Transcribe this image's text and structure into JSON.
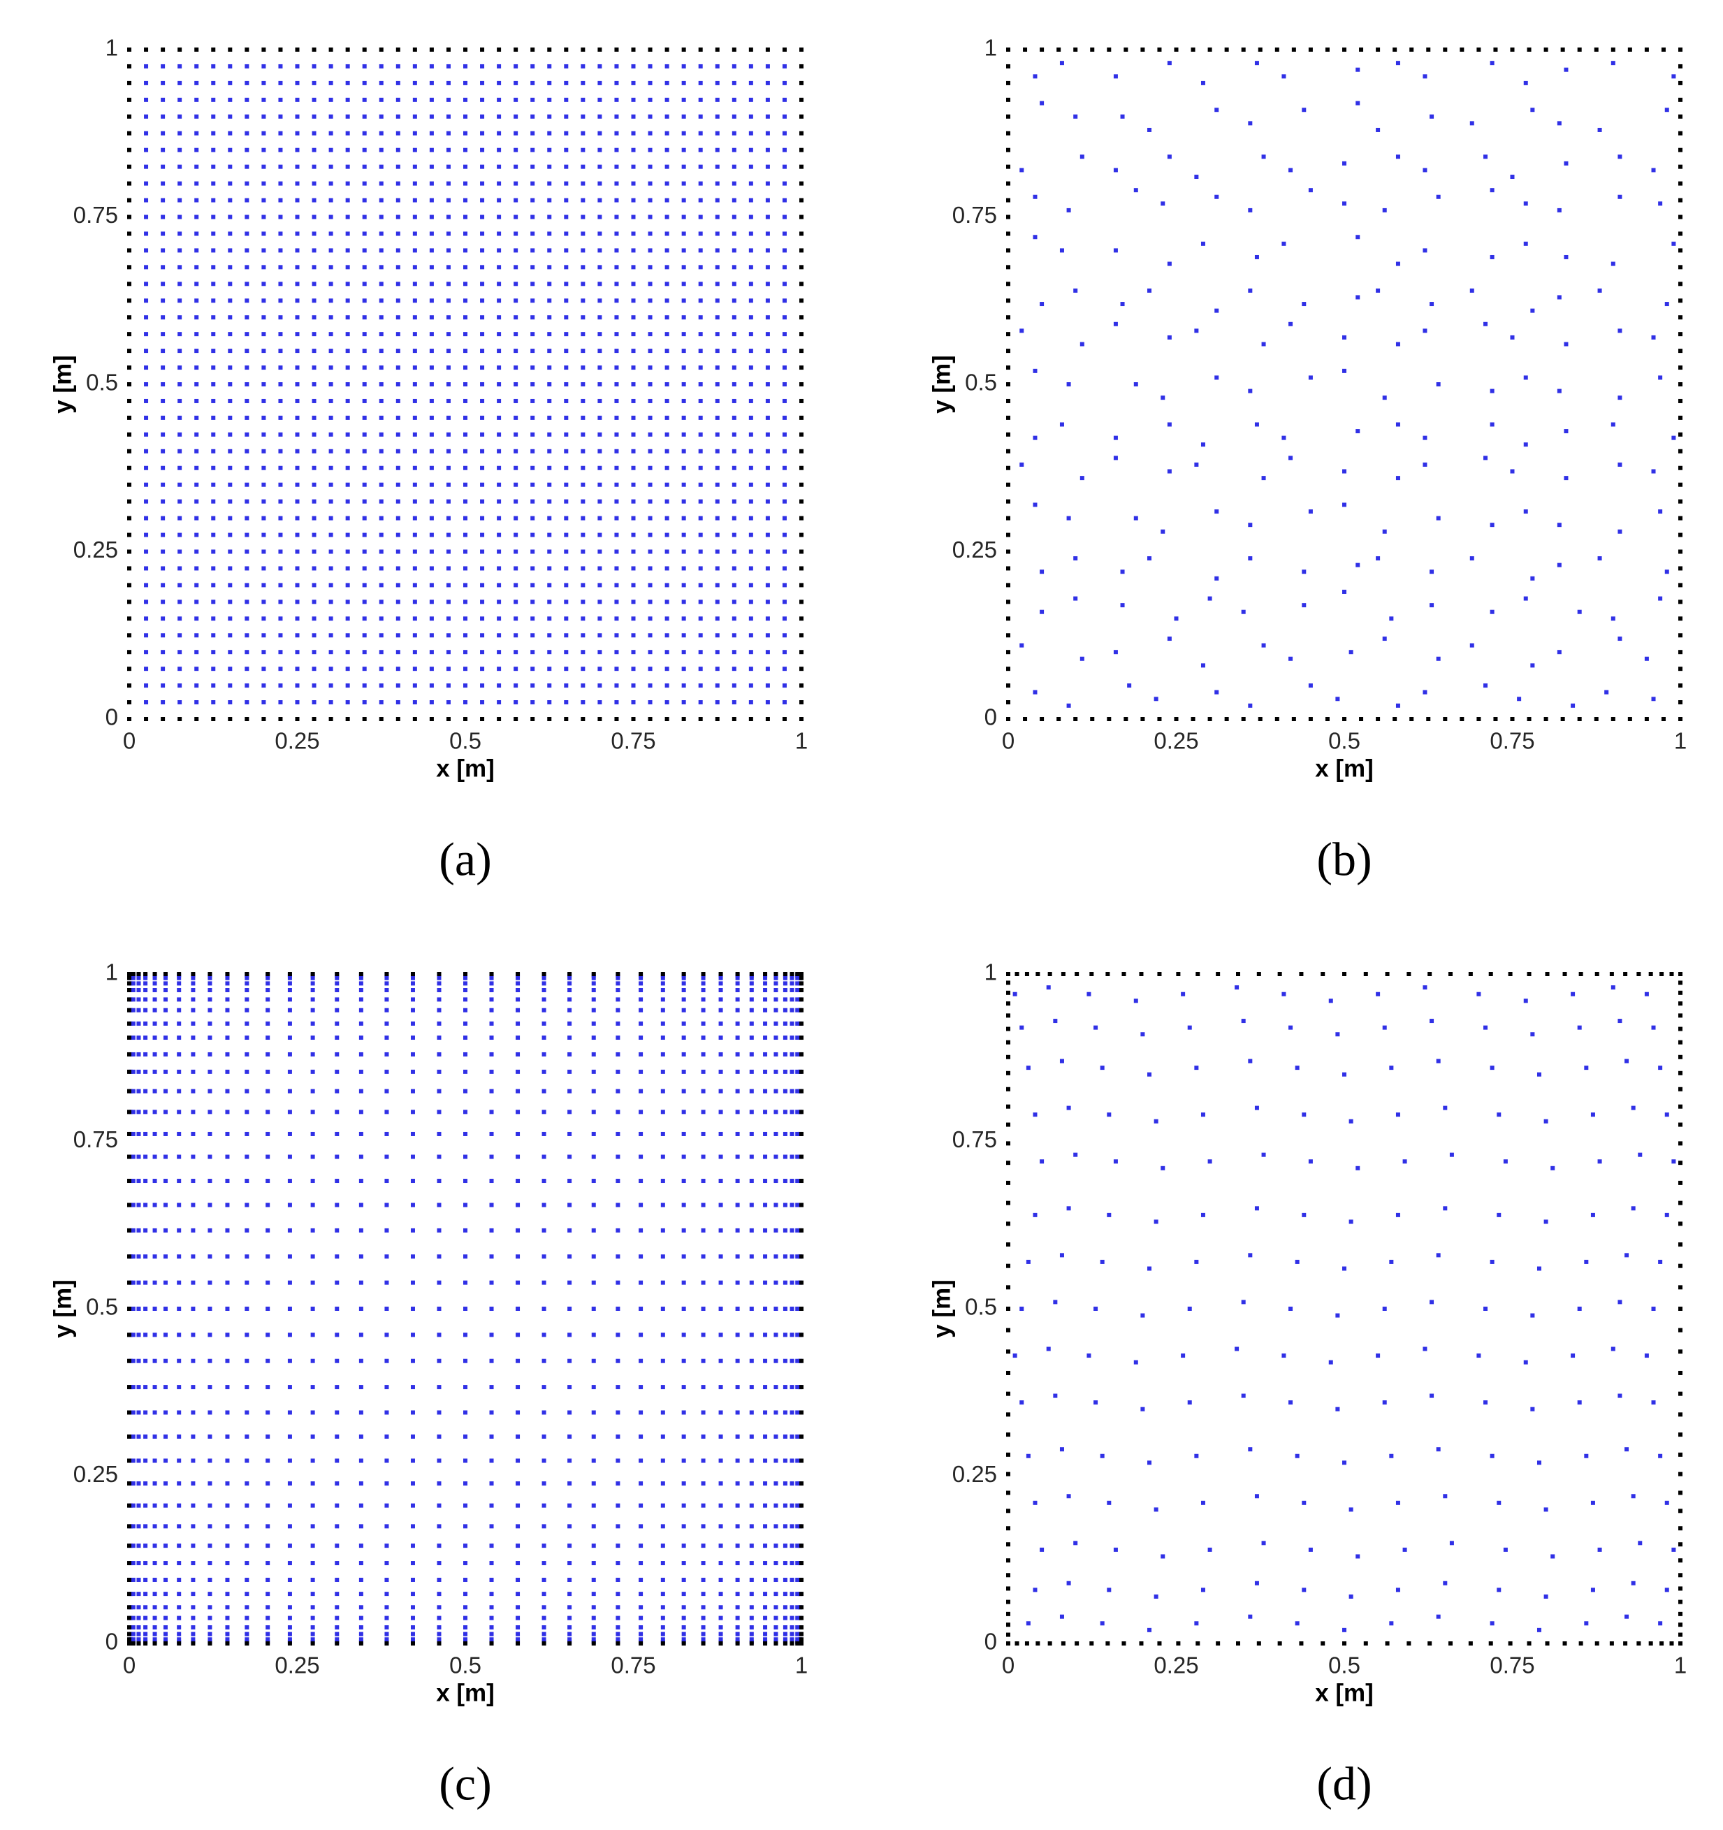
{
  "chart_data": [
    {
      "type": "grid",
      "caption": "(a)",
      "xlabel": "x [m]",
      "ylabel": "y [m]",
      "xlim": [
        0,
        1
      ],
      "ylim": [
        0,
        1
      ],
      "xticks": [
        0,
        0.25,
        0.5,
        0.75,
        1
      ],
      "yticks": [
        0,
        0.25,
        0.5,
        0.75,
        1
      ],
      "color": "#3030e6",
      "boundary_color": "#000000",
      "x": [
        0,
        0.025,
        0.05,
        0.075,
        0.1,
        0.125,
        0.15,
        0.175,
        0.2,
        0.225,
        0.25,
        0.275,
        0.3,
        0.325,
        0.35,
        0.375,
        0.4,
        0.425,
        0.45,
        0.475,
        0.5,
        0.525,
        0.55,
        0.575,
        0.6,
        0.625,
        0.65,
        0.675,
        0.7,
        0.725,
        0.75,
        0.775,
        0.8,
        0.825,
        0.85,
        0.875,
        0.9,
        0.925,
        0.95,
        0.975,
        1
      ],
      "y": [
        0,
        0.025,
        0.05,
        0.075,
        0.1,
        0.125,
        0.15,
        0.175,
        0.2,
        0.225,
        0.25,
        0.275,
        0.3,
        0.325,
        0.35,
        0.375,
        0.4,
        0.425,
        0.45,
        0.475,
        0.5,
        0.525,
        0.55,
        0.575,
        0.6,
        0.625,
        0.65,
        0.675,
        0.7,
        0.725,
        0.75,
        0.775,
        0.8,
        0.825,
        0.85,
        0.875,
        0.9,
        0.925,
        0.95,
        0.975,
        1
      ]
    },
    {
      "type": "scatter",
      "caption": "(b)",
      "xlabel": "x [m]",
      "ylabel": "y [m]",
      "xlim": [
        0,
        1
      ],
      "ylim": [
        0,
        1
      ],
      "xticks": [
        0,
        0.25,
        0.5,
        0.75,
        1
      ],
      "yticks": [
        0,
        0.25,
        0.5,
        0.75,
        1
      ],
      "color": "#3030e6",
      "boundary_color": "#000000",
      "boundary_x": [
        0,
        0.025,
        0.05,
        0.075,
        0.1,
        0.125,
        0.15,
        0.175,
        0.2,
        0.225,
        0.25,
        0.275,
        0.3,
        0.325,
        0.35,
        0.375,
        0.4,
        0.425,
        0.45,
        0.475,
        0.5,
        0.525,
        0.55,
        0.575,
        0.6,
        0.625,
        0.65,
        0.675,
        0.7,
        0.725,
        0.75,
        0.775,
        0.8,
        0.825,
        0.85,
        0.875,
        0.9,
        0.925,
        0.95,
        0.975,
        1
      ],
      "boundary_y": [
        0,
        0.025,
        0.05,
        0.075,
        0.1,
        0.125,
        0.15,
        0.175,
        0.2,
        0.225,
        0.25,
        0.275,
        0.3,
        0.325,
        0.35,
        0.375,
        0.4,
        0.425,
        0.45,
        0.475,
        0.5,
        0.525,
        0.55,
        0.575,
        0.6,
        0.625,
        0.65,
        0.675,
        0.7,
        0.725,
        0.75,
        0.775,
        0.8,
        0.825,
        0.85,
        0.875,
        0.9,
        0.925,
        0.95,
        0.975,
        1
      ],
      "x": [
        0.04,
        0.09,
        0.18,
        0.22,
        0.31,
        0.36,
        0.45,
        0.49,
        0.58,
        0.62,
        0.71,
        0.76,
        0.84,
        0.89,
        0.96,
        0.02,
        0.11,
        0.16,
        0.24,
        0.29,
        0.38,
        0.42,
        0.51,
        0.56,
        0.64,
        0.69,
        0.78,
        0.82,
        0.91,
        0.95,
        0.05,
        0.1,
        0.17,
        0.25,
        0.3,
        0.35,
        0.44,
        0.5,
        0.57,
        0.63,
        0.72,
        0.77,
        0.85,
        0.9,
        0.97,
        0.05,
        0.1,
        0.17,
        0.21,
        0.31,
        0.36,
        0.44,
        0.52,
        0.55,
        0.63,
        0.69,
        0.78,
        0.82,
        0.88,
        0.98,
        0.04,
        0.09,
        0.19,
        0.23,
        0.31,
        0.36,
        0.45,
        0.5,
        0.56,
        0.64,
        0.72,
        0.77,
        0.82,
        0.91,
        0.97,
        0.02,
        0.11,
        0.16,
        0.24,
        0.28,
        0.38,
        0.42,
        0.5,
        0.58,
        0.62,
        0.71,
        0.75,
        0.83,
        0.91,
        0.96,
        0.04,
        0.08,
        0.16,
        0.24,
        0.29,
        0.37,
        0.41,
        0.52,
        0.58,
        0.62,
        0.72,
        0.77,
        0.83,
        0.9,
        0.99,
        0.04,
        0.09,
        0.19,
        0.23,
        0.31,
        0.36,
        0.45,
        0.5,
        0.56,
        0.64,
        0.72,
        0.77,
        0.82,
        0.91,
        0.97,
        0.02,
        0.11,
        0.16,
        0.24,
        0.28,
        0.38,
        0.42,
        0.5,
        0.58,
        0.62,
        0.71,
        0.75,
        0.83,
        0.91,
        0.96,
        0.05,
        0.1,
        0.17,
        0.21,
        0.31,
        0.36,
        0.44,
        0.52,
        0.55,
        0.63,
        0.69,
        0.78,
        0.82,
        0.88,
        0.98,
        0.04,
        0.08,
        0.16,
        0.24,
        0.29,
        0.37,
        0.41,
        0.52,
        0.58,
        0.62,
        0.72,
        0.77,
        0.83,
        0.9,
        0.99,
        0.04,
        0.09,
        0.19,
        0.23,
        0.31,
        0.36,
        0.45,
        0.5,
        0.56,
        0.64,
        0.72,
        0.77,
        0.82,
        0.91,
        0.97,
        0.02,
        0.11,
        0.16,
        0.24,
        0.28,
        0.38,
        0.42,
        0.5,
        0.58,
        0.62,
        0.71,
        0.75,
        0.83,
        0.91,
        0.96,
        0.05,
        0.1,
        0.17,
        0.21,
        0.31,
        0.36,
        0.44,
        0.52,
        0.55,
        0.63,
        0.69,
        0.78,
        0.82,
        0.88,
        0.98,
        0.04,
        0.08,
        0.16,
        0.24,
        0.29,
        0.37,
        0.41,
        0.52,
        0.58,
        0.62,
        0.72,
        0.77,
        0.83,
        0.9,
        0.99
      ],
      "values": [
        0.04,
        0.02,
        0.05,
        0.03,
        0.04,
        0.02,
        0.05,
        0.03,
        0.02,
        0.04,
        0.05,
        0.03,
        0.02,
        0.04,
        0.03,
        0.11,
        0.09,
        0.1,
        0.12,
        0.08,
        0.11,
        0.09,
        0.1,
        0.12,
        0.09,
        0.11,
        0.08,
        0.1,
        0.12,
        0.09,
        0.16,
        0.18,
        0.17,
        0.15,
        0.18,
        0.16,
        0.17,
        0.19,
        0.15,
        0.17,
        0.16,
        0.18,
        0.16,
        0.15,
        0.18,
        0.22,
        0.24,
        0.22,
        0.24,
        0.21,
        0.24,
        0.22,
        0.23,
        0.24,
        0.22,
        0.24,
        0.21,
        0.23,
        0.24,
        0.22,
        0.32,
        0.3,
        0.3,
        0.28,
        0.31,
        0.29,
        0.31,
        0.32,
        0.28,
        0.3,
        0.29,
        0.31,
        0.29,
        0.28,
        0.31,
        0.38,
        0.36,
        0.39,
        0.37,
        0.38,
        0.36,
        0.39,
        0.37,
        0.36,
        0.38,
        0.39,
        0.37,
        0.36,
        0.38,
        0.37,
        0.42,
        0.44,
        0.42,
        0.44,
        0.41,
        0.44,
        0.42,
        0.43,
        0.44,
        0.42,
        0.44,
        0.41,
        0.43,
        0.44,
        0.42,
        0.52,
        0.5,
        0.5,
        0.48,
        0.51,
        0.49,
        0.51,
        0.52,
        0.48,
        0.5,
        0.49,
        0.51,
        0.49,
        0.48,
        0.51,
        0.58,
        0.56,
        0.59,
        0.57,
        0.58,
        0.56,
        0.59,
        0.57,
        0.56,
        0.58,
        0.59,
        0.57,
        0.56,
        0.58,
        0.57,
        0.62,
        0.64,
        0.62,
        0.64,
        0.61,
        0.64,
        0.62,
        0.63,
        0.64,
        0.62,
        0.64,
        0.61,
        0.63,
        0.64,
        0.62,
        0.72,
        0.7,
        0.7,
        0.68,
        0.71,
        0.69,
        0.71,
        0.72,
        0.68,
        0.7,
        0.69,
        0.71,
        0.69,
        0.68,
        0.71,
        0.78,
        0.76,
        0.79,
        0.77,
        0.78,
        0.76,
        0.79,
        0.77,
        0.76,
        0.78,
        0.79,
        0.77,
        0.76,
        0.78,
        0.77,
        0.82,
        0.84,
        0.82,
        0.84,
        0.81,
        0.84,
        0.82,
        0.83,
        0.84,
        0.82,
        0.84,
        0.81,
        0.83,
        0.84,
        0.82,
        0.92,
        0.9,
        0.9,
        0.88,
        0.91,
        0.89,
        0.91,
        0.92,
        0.88,
        0.9,
        0.89,
        0.91,
        0.89,
        0.88,
        0.91,
        0.96,
        0.98,
        0.96,
        0.98,
        0.95,
        0.98,
        0.96,
        0.97,
        0.98,
        0.96,
        0.98,
        0.95,
        0.97,
        0.98,
        0.96
      ]
    },
    {
      "type": "grid",
      "caption": "(c)",
      "xlabel": "x [m]",
      "ylabel": "y [m]",
      "xlim": [
        0,
        1
      ],
      "ylim": [
        0,
        1
      ],
      "xticks": [
        0,
        0.25,
        0.5,
        0.75,
        1
      ],
      "yticks": [
        0,
        0.25,
        0.5,
        0.75,
        1
      ],
      "color": "#3030e6",
      "boundary_color": "#000000",
      "x": [
        0,
        0.002,
        0.006,
        0.014,
        0.024,
        0.038,
        0.054,
        0.074,
        0.095,
        0.12,
        0.146,
        0.175,
        0.206,
        0.239,
        0.273,
        0.309,
        0.345,
        0.383,
        0.422,
        0.461,
        0.5,
        0.539,
        0.578,
        0.617,
        0.655,
        0.691,
        0.727,
        0.761,
        0.794,
        0.825,
        0.854,
        0.88,
        0.905,
        0.926,
        0.946,
        0.962,
        0.976,
        0.986,
        0.994,
        0.998,
        1
      ],
      "y": [
        0,
        0.002,
        0.006,
        0.014,
        0.024,
        0.038,
        0.054,
        0.074,
        0.095,
        0.12,
        0.146,
        0.175,
        0.206,
        0.239,
        0.273,
        0.309,
        0.345,
        0.383,
        0.422,
        0.461,
        0.5,
        0.539,
        0.578,
        0.617,
        0.655,
        0.691,
        0.727,
        0.761,
        0.794,
        0.825,
        0.854,
        0.88,
        0.905,
        0.926,
        0.946,
        0.962,
        0.976,
        0.986,
        0.994,
        0.998,
        1
      ]
    },
    {
      "type": "scatter",
      "caption": "(d)",
      "xlabel": "x [m]",
      "ylabel": "y [m]",
      "xlim": [
        0,
        1
      ],
      "ylim": [
        0,
        1
      ],
      "xticks": [
        0,
        0.25,
        0.5,
        0.75,
        1
      ],
      "yticks": [
        0,
        0.25,
        0.5,
        0.75,
        1
      ],
      "color": "#3030e6",
      "boundary_color": "#000000",
      "boundary_x": [
        0,
        0.013,
        0.028,
        0.044,
        0.062,
        0.082,
        0.102,
        0.124,
        0.148,
        0.172,
        0.198,
        0.225,
        0.253,
        0.282,
        0.312,
        0.342,
        0.373,
        0.404,
        0.436,
        0.468,
        0.5,
        0.532,
        0.564,
        0.596,
        0.627,
        0.658,
        0.688,
        0.718,
        0.747,
        0.775,
        0.802,
        0.828,
        0.852,
        0.876,
        0.898,
        0.918,
        0.938,
        0.956,
        0.972,
        0.987,
        1
      ],
      "boundary_y": [
        0,
        0.013,
        0.028,
        0.044,
        0.062,
        0.082,
        0.102,
        0.124,
        0.148,
        0.172,
        0.198,
        0.225,
        0.253,
        0.282,
        0.312,
        0.342,
        0.373,
        0.404,
        0.436,
        0.468,
        0.5,
        0.532,
        0.564,
        0.596,
        0.627,
        0.658,
        0.688,
        0.718,
        0.747,
        0.775,
        0.802,
        0.828,
        0.852,
        0.876,
        0.898,
        0.918,
        0.938,
        0.956,
        0.972,
        0.987,
        1
      ],
      "x": [
        0.03,
        0.08,
        0.14,
        0.21,
        0.28,
        0.36,
        0.43,
        0.5,
        0.57,
        0.64,
        0.72,
        0.79,
        0.86,
        0.92,
        0.97,
        0.04,
        0.09,
        0.15,
        0.22,
        0.29,
        0.37,
        0.44,
        0.51,
        0.58,
        0.65,
        0.73,
        0.8,
        0.87,
        0.93,
        0.98,
        0.05,
        0.1,
        0.16,
        0.23,
        0.3,
        0.38,
        0.45,
        0.52,
        0.59,
        0.66,
        0.74,
        0.81,
        0.88,
        0.94,
        0.99,
        0.04,
        0.09,
        0.15,
        0.22,
        0.29,
        0.37,
        0.44,
        0.51,
        0.58,
        0.65,
        0.73,
        0.8,
        0.87,
        0.93,
        0.98,
        0.03,
        0.08,
        0.14,
        0.21,
        0.28,
        0.36,
        0.43,
        0.5,
        0.57,
        0.64,
        0.72,
        0.79,
        0.86,
        0.92,
        0.97,
        0.02,
        0.07,
        0.13,
        0.2,
        0.27,
        0.35,
        0.42,
        0.49,
        0.56,
        0.63,
        0.71,
        0.78,
        0.85,
        0.91,
        0.96,
        0.01,
        0.06,
        0.12,
        0.19,
        0.26,
        0.34,
        0.41,
        0.48,
        0.55,
        0.62,
        0.7,
        0.77,
        0.84,
        0.9,
        0.95,
        0.02,
        0.07,
        0.13,
        0.2,
        0.27,
        0.35,
        0.42,
        0.49,
        0.56,
        0.63,
        0.71,
        0.78,
        0.85,
        0.91,
        0.96,
        0.03,
        0.08,
        0.14,
        0.21,
        0.28,
        0.36,
        0.43,
        0.5,
        0.57,
        0.64,
        0.72,
        0.79,
        0.86,
        0.92,
        0.97,
        0.04,
        0.09,
        0.15,
        0.22,
        0.29,
        0.37,
        0.44,
        0.51,
        0.58,
        0.65,
        0.73,
        0.8,
        0.87,
        0.93,
        0.98,
        0.05,
        0.1,
        0.16,
        0.23,
        0.3,
        0.38,
        0.45,
        0.52,
        0.59,
        0.66,
        0.74,
        0.81,
        0.88,
        0.94,
        0.99,
        0.04,
        0.09,
        0.15,
        0.22,
        0.29,
        0.37,
        0.44,
        0.51,
        0.58,
        0.65,
        0.73,
        0.8,
        0.87,
        0.93,
        0.98,
        0.03,
        0.08,
        0.14,
        0.21,
        0.28,
        0.36,
        0.43,
        0.5,
        0.57,
        0.64,
        0.72,
        0.79,
        0.86,
        0.92,
        0.97,
        0.02,
        0.07,
        0.13,
        0.2,
        0.27,
        0.35,
        0.42,
        0.49,
        0.56,
        0.63,
        0.71,
        0.78,
        0.85,
        0.91,
        0.96,
        0.01,
        0.06,
        0.12,
        0.19,
        0.26,
        0.34,
        0.41,
        0.48,
        0.55,
        0.62,
        0.7,
        0.77,
        0.84,
        0.9,
        0.95
      ],
      "values": [
        0.03,
        0.04,
        0.03,
        0.02,
        0.03,
        0.04,
        0.03,
        0.02,
        0.03,
        0.04,
        0.03,
        0.02,
        0.03,
        0.04,
        0.03,
        0.08,
        0.09,
        0.08,
        0.07,
        0.08,
        0.09,
        0.08,
        0.07,
        0.08,
        0.09,
        0.08,
        0.07,
        0.08,
        0.09,
        0.08,
        0.14,
        0.15,
        0.14,
        0.13,
        0.14,
        0.15,
        0.14,
        0.13,
        0.14,
        0.15,
        0.14,
        0.13,
        0.14,
        0.15,
        0.14,
        0.21,
        0.22,
        0.21,
        0.2,
        0.21,
        0.22,
        0.21,
        0.2,
        0.21,
        0.22,
        0.21,
        0.2,
        0.21,
        0.22,
        0.21,
        0.28,
        0.29,
        0.28,
        0.27,
        0.28,
        0.29,
        0.28,
        0.27,
        0.28,
        0.29,
        0.28,
        0.27,
        0.28,
        0.29,
        0.28,
        0.36,
        0.37,
        0.36,
        0.35,
        0.36,
        0.37,
        0.36,
        0.35,
        0.36,
        0.37,
        0.36,
        0.35,
        0.36,
        0.37,
        0.36,
        0.43,
        0.44,
        0.43,
        0.42,
        0.43,
        0.44,
        0.43,
        0.42,
        0.43,
        0.44,
        0.43,
        0.42,
        0.43,
        0.44,
        0.43,
        0.5,
        0.51,
        0.5,
        0.49,
        0.5,
        0.51,
        0.5,
        0.49,
        0.5,
        0.51,
        0.5,
        0.49,
        0.5,
        0.51,
        0.5,
        0.57,
        0.58,
        0.57,
        0.56,
        0.57,
        0.58,
        0.57,
        0.56,
        0.57,
        0.58,
        0.57,
        0.56,
        0.57,
        0.58,
        0.57,
        0.64,
        0.65,
        0.64,
        0.63,
        0.64,
        0.65,
        0.64,
        0.63,
        0.64,
        0.65,
        0.64,
        0.63,
        0.64,
        0.65,
        0.64,
        0.72,
        0.73,
        0.72,
        0.71,
        0.72,
        0.73,
        0.72,
        0.71,
        0.72,
        0.73,
        0.72,
        0.71,
        0.72,
        0.73,
        0.72,
        0.79,
        0.8,
        0.79,
        0.78,
        0.79,
        0.8,
        0.79,
        0.78,
        0.79,
        0.8,
        0.79,
        0.78,
        0.79,
        0.8,
        0.79,
        0.86,
        0.87,
        0.86,
        0.85,
        0.86,
        0.87,
        0.86,
        0.85,
        0.86,
        0.87,
        0.86,
        0.85,
        0.86,
        0.87,
        0.86,
        0.92,
        0.93,
        0.92,
        0.91,
        0.92,
        0.93,
        0.92,
        0.91,
        0.92,
        0.93,
        0.92,
        0.91,
        0.92,
        0.93,
        0.92,
        0.97,
        0.98,
        0.97,
        0.96,
        0.97,
        0.98,
        0.97,
        0.96,
        0.97,
        0.98,
        0.97,
        0.96,
        0.97,
        0.98,
        0.97
      ]
    }
  ]
}
